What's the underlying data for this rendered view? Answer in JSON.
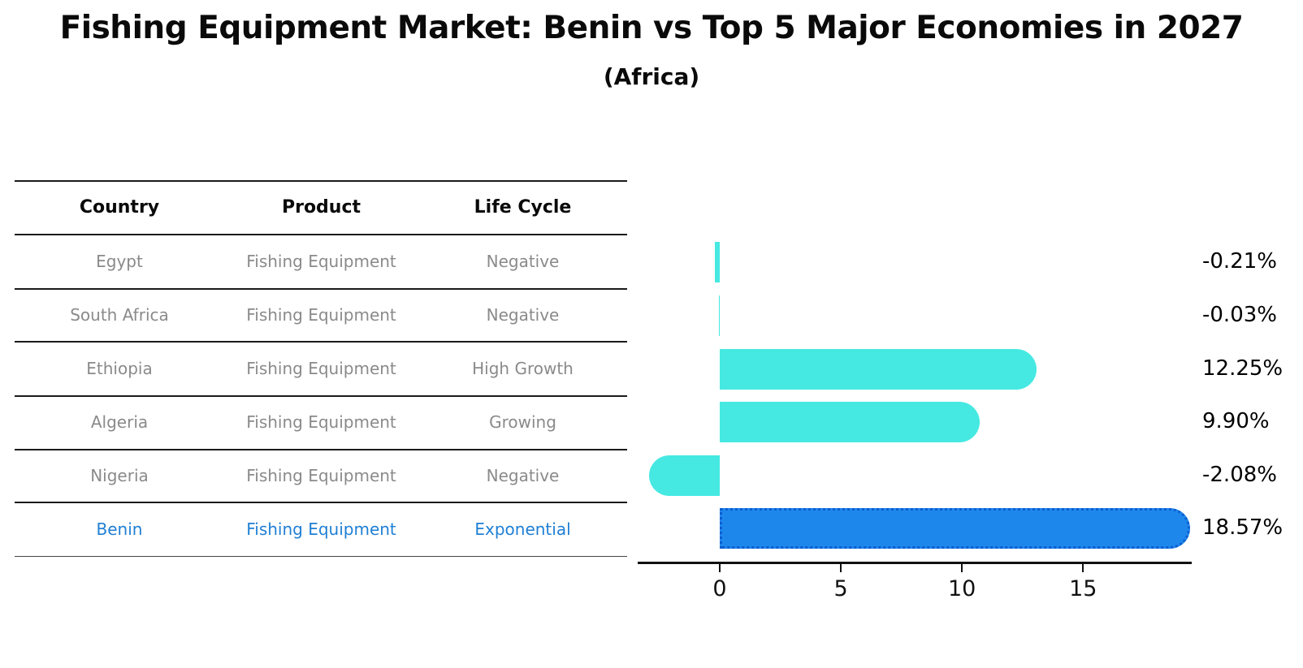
{
  "title": "Fishing Equipment Market: Benin vs Top 5 Major Economies in 2027",
  "subtitle": "(Africa)",
  "table": {
    "headers": [
      "Country",
      "Product",
      "Life Cycle"
    ],
    "rows": [
      {
        "country": "Egypt",
        "product": "Fishing Equipment",
        "life_cycle": "Negative",
        "highlight": false
      },
      {
        "country": "South Africa",
        "product": "Fishing Equipment",
        "life_cycle": "Negative",
        "highlight": false
      },
      {
        "country": "Ethiopia",
        "product": "Fishing Equipment",
        "life_cycle": "High Growth",
        "highlight": false
      },
      {
        "country": "Algeria",
        "product": "Fishing Equipment",
        "life_cycle": "Growing",
        "highlight": false
      },
      {
        "country": "Nigeria",
        "product": "Fishing Equipment",
        "life_cycle": "Negative",
        "highlight": false
      },
      {
        "country": "Benin",
        "product": "Fishing Equipment",
        "life_cycle": "Exponential",
        "highlight": true
      }
    ]
  },
  "chart_data": {
    "type": "bar",
    "orientation": "horizontal",
    "categories": [
      "Egypt",
      "South Africa",
      "Ethiopia",
      "Algeria",
      "Nigeria",
      "Benin"
    ],
    "values": [
      -0.21,
      -0.03,
      12.25,
      9.9,
      -2.08,
      18.57
    ],
    "value_labels": [
      "-0.21%",
      "-0.03%",
      "12.25%",
      "9.90%",
      "-2.08%",
      "18.57%"
    ],
    "x_ticks": [
      0,
      5,
      10,
      15
    ],
    "xlim": [
      -3.4,
      19.5
    ],
    "grid": false,
    "legend": "none",
    "bar_color": "#45e9e2",
    "highlight_bar_color": "#1e87eb",
    "highlight_border_color": "#0c5ed2",
    "row_text_color": "#8a8a8a",
    "highlight_text_color": "#1f7fd4",
    "highlight_category": "Benin"
  }
}
